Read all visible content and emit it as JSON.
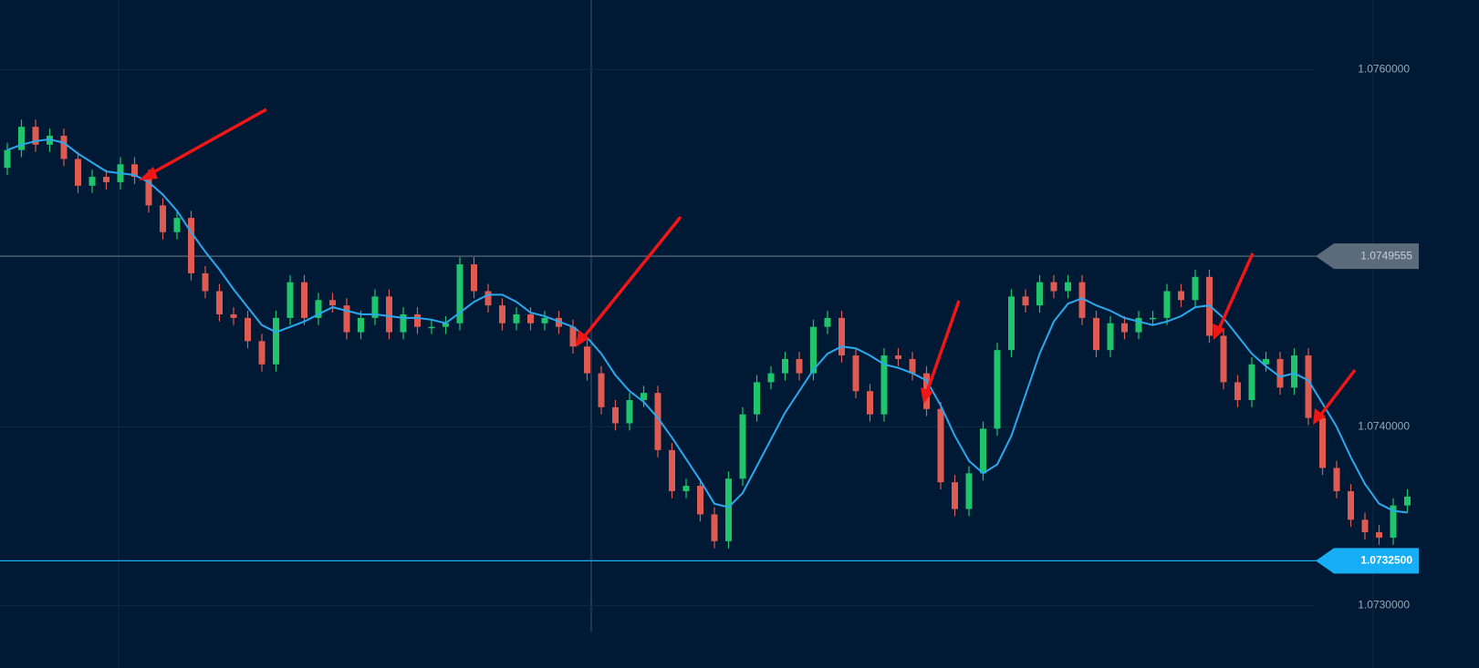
{
  "chart_data": {
    "type": "candlestick",
    "up_color": "#1fc46b",
    "down_color": "#df5a50",
    "grid": true,
    "ylim": [
      1.07265,
      1.07639
    ],
    "yticks": [
      {
        "value": 1.076,
        "label": "1.0760000"
      },
      {
        "value": 1.074,
        "label": "1.0740000"
      },
      {
        "value": 1.073,
        "label": "1.0730000"
      }
    ],
    "open": [
      1.07545,
      1.07555,
      1.07568,
      1.07558,
      1.07563,
      1.0755,
      1.07535,
      1.0754,
      1.07537,
      1.07547,
      1.0754,
      1.07524,
      1.07509,
      1.07517,
      1.07486,
      1.07476,
      1.07463,
      1.07461,
      1.07448,
      1.07435,
      1.07461,
      1.07481,
      1.07461,
      1.07471,
      1.07468,
      1.07453,
      1.07461,
      1.07473,
      1.07453,
      1.07463,
      1.07456,
      1.07456,
      1.07458,
      1.07491,
      1.07476,
      1.07468,
      1.07458,
      1.07463,
      1.07458,
      1.07461,
      1.07456,
      1.07445,
      1.0743,
      1.07411,
      1.07402,
      1.07415,
      1.07419,
      1.07387,
      1.07364,
      1.07367,
      1.07351,
      1.07336,
      1.07371,
      1.07407,
      1.07425,
      1.0743,
      1.07438,
      1.0743,
      1.07456,
      1.07461,
      1.0744,
      1.0742,
      1.07407,
      1.0744,
      1.07438,
      1.0743,
      1.0741,
      1.07369,
      1.07354,
      1.07374,
      1.07399,
      1.07443,
      1.07473,
      1.07468,
      1.07481,
      1.07476,
      1.07481,
      1.07461,
      1.07443,
      1.07458,
      1.07453,
      1.07461,
      1.07461,
      1.07476,
      1.07471,
      1.07484,
      1.07451,
      1.07425,
      1.07415,
      1.07435,
      1.07438,
      1.07422,
      1.0744,
      1.07405,
      1.07377,
      1.07364,
      1.07348,
      1.07341,
      1.07338,
      1.07356
    ],
    "high": [
      1.07559,
      1.07572,
      1.07572,
      1.07567,
      1.07567,
      1.07554,
      1.07544,
      1.07544,
      1.07551,
      1.07551,
      1.07544,
      1.07528,
      1.07521,
      1.07521,
      1.0749,
      1.0748,
      1.07467,
      1.07465,
      1.07452,
      1.07465,
      1.07485,
      1.07485,
      1.07475,
      1.07475,
      1.07472,
      1.07465,
      1.07477,
      1.07477,
      1.07467,
      1.07467,
      1.0746,
      1.07462,
      1.07495,
      1.07495,
      1.0748,
      1.07472,
      1.07467,
      1.07467,
      1.07465,
      1.07465,
      1.0746,
      1.07449,
      1.07434,
      1.07415,
      1.07419,
      1.07423,
      1.07423,
      1.07391,
      1.07371,
      1.07371,
      1.07355,
      1.07375,
      1.07411,
      1.07429,
      1.07434,
      1.07442,
      1.07442,
      1.0746,
      1.07465,
      1.07465,
      1.07444,
      1.07424,
      1.07444,
      1.07444,
      1.07442,
      1.07434,
      1.07414,
      1.07373,
      1.07378,
      1.07403,
      1.07447,
      1.07477,
      1.07477,
      1.07485,
      1.07485,
      1.07485,
      1.07485,
      1.07465,
      1.07462,
      1.07462,
      1.07465,
      1.07465,
      1.0748,
      1.0748,
      1.07488,
      1.07488,
      1.07455,
      1.07429,
      1.07439,
      1.07442,
      1.07442,
      1.07444,
      1.07444,
      1.07409,
      1.07381,
      1.07368,
      1.07352,
      1.07345,
      1.0736,
      1.07365
    ],
    "low": [
      1.07541,
      1.07551,
      1.07554,
      1.07554,
      1.07546,
      1.07531,
      1.07531,
      1.07533,
      1.07533,
      1.07536,
      1.0752,
      1.07505,
      1.07505,
      1.07482,
      1.07472,
      1.07459,
      1.07457,
      1.07444,
      1.07431,
      1.07431,
      1.07457,
      1.07457,
      1.07457,
      1.07464,
      1.07449,
      1.07449,
      1.07457,
      1.07449,
      1.07449,
      1.07452,
      1.07452,
      1.07452,
      1.07454,
      1.07472,
      1.07464,
      1.07454,
      1.07454,
      1.07454,
      1.07454,
      1.07452,
      1.07441,
      1.07426,
      1.07407,
      1.07398,
      1.07398,
      1.07411,
      1.07383,
      1.0736,
      1.0736,
      1.07347,
      1.07332,
      1.07332,
      1.07367,
      1.07403,
      1.07421,
      1.07426,
      1.07426,
      1.07426,
      1.07452,
      1.07436,
      1.07416,
      1.07403,
      1.07403,
      1.07434,
      1.07426,
      1.07406,
      1.07365,
      1.0735,
      1.0735,
      1.0737,
      1.07395,
      1.07439,
      1.07464,
      1.07464,
      1.07472,
      1.07472,
      1.07457,
      1.07439,
      1.07439,
      1.07449,
      1.07449,
      1.07457,
      1.07457,
      1.07467,
      1.07467,
      1.07447,
      1.07421,
      1.07411,
      1.07411,
      1.07431,
      1.07418,
      1.07418,
      1.07401,
      1.07373,
      1.0736,
      1.07344,
      1.07337,
      1.07334,
      1.07334,
      1.07352
    ],
    "close": [
      1.07555,
      1.07568,
      1.07558,
      1.07563,
      1.0755,
      1.07535,
      1.0754,
      1.07537,
      1.07547,
      1.0754,
      1.07524,
      1.07509,
      1.07517,
      1.07486,
      1.07476,
      1.07463,
      1.07461,
      1.07448,
      1.07435,
      1.07461,
      1.07481,
      1.07461,
      1.07471,
      1.07468,
      1.07453,
      1.07461,
      1.07473,
      1.07453,
      1.07463,
      1.07456,
      1.07456,
      1.07458,
      1.07491,
      1.07476,
      1.07468,
      1.07458,
      1.07463,
      1.07458,
      1.07461,
      1.07456,
      1.07445,
      1.0743,
      1.07411,
      1.07402,
      1.07415,
      1.07419,
      1.07387,
      1.07364,
      1.07367,
      1.07351,
      1.07336,
      1.07371,
      1.07407,
      1.07425,
      1.0743,
      1.07438,
      1.0743,
      1.07456,
      1.07461,
      1.0744,
      1.0742,
      1.07407,
      1.0744,
      1.07438,
      1.0743,
      1.0741,
      1.07369,
      1.07354,
      1.07374,
      1.07399,
      1.07443,
      1.07473,
      1.07468,
      1.07481,
      1.07476,
      1.07481,
      1.07461,
      1.07443,
      1.07458,
      1.07453,
      1.07461,
      1.07461,
      1.07476,
      1.07471,
      1.07484,
      1.07451,
      1.07425,
      1.07415,
      1.07435,
      1.07438,
      1.07422,
      1.0744,
      1.07405,
      1.07377,
      1.07364,
      1.07348,
      1.07341,
      1.07338,
      1.07356,
      1.07361
    ],
    "ma": {
      "color": "#2aa9ef",
      "values": [
        1.07555,
        1.07558,
        1.0756,
        1.07561,
        1.07559,
        1.07553,
        1.07548,
        1.07543,
        1.07542,
        1.07541,
        1.07537,
        1.0753,
        1.07521,
        1.07509,
        1.07498,
        1.07488,
        1.07477,
        1.07467,
        1.07457,
        1.07453,
        1.07456,
        1.07459,
        1.07463,
        1.07467,
        1.07465,
        1.07463,
        1.07463,
        1.07462,
        1.07461,
        1.07461,
        1.0746,
        1.07458,
        1.07464,
        1.0747,
        1.07474,
        1.07474,
        1.0747,
        1.07464,
        1.07462,
        1.07459,
        1.07456,
        1.0745,
        1.07441,
        1.07429,
        1.0742,
        1.07414,
        1.07405,
        1.07394,
        1.07382,
        1.0737,
        1.07357,
        1.07355,
        1.07363,
        1.07378,
        1.07393,
        1.07408,
        1.0742,
        1.07432,
        1.07441,
        1.07445,
        1.07444,
        1.0744,
        1.07435,
        1.07433,
        1.0743,
        1.07426,
        1.07412,
        1.07395,
        1.07381,
        1.07374,
        1.07379,
        1.07395,
        1.07418,
        1.07441,
        1.07459,
        1.07469,
        1.07472,
        1.07468,
        1.07465,
        1.07461,
        1.07459,
        1.07457,
        1.07459,
        1.07462,
        1.07467,
        1.07468,
        1.07461,
        1.07451,
        1.07441,
        1.07434,
        1.07428,
        1.0743,
        1.07426,
        1.07413,
        1.074,
        1.07383,
        1.07368,
        1.07357,
        1.07353,
        1.07352
      ]
    },
    "price_lines": [
      {
        "value": 1.0749555,
        "color": "#5b6b7c"
      },
      {
        "value": {
          "value": 1.07325,
          "label": "1.0732500"
        },
        "color": "#16aef5"
      }
    ]
  }
}
